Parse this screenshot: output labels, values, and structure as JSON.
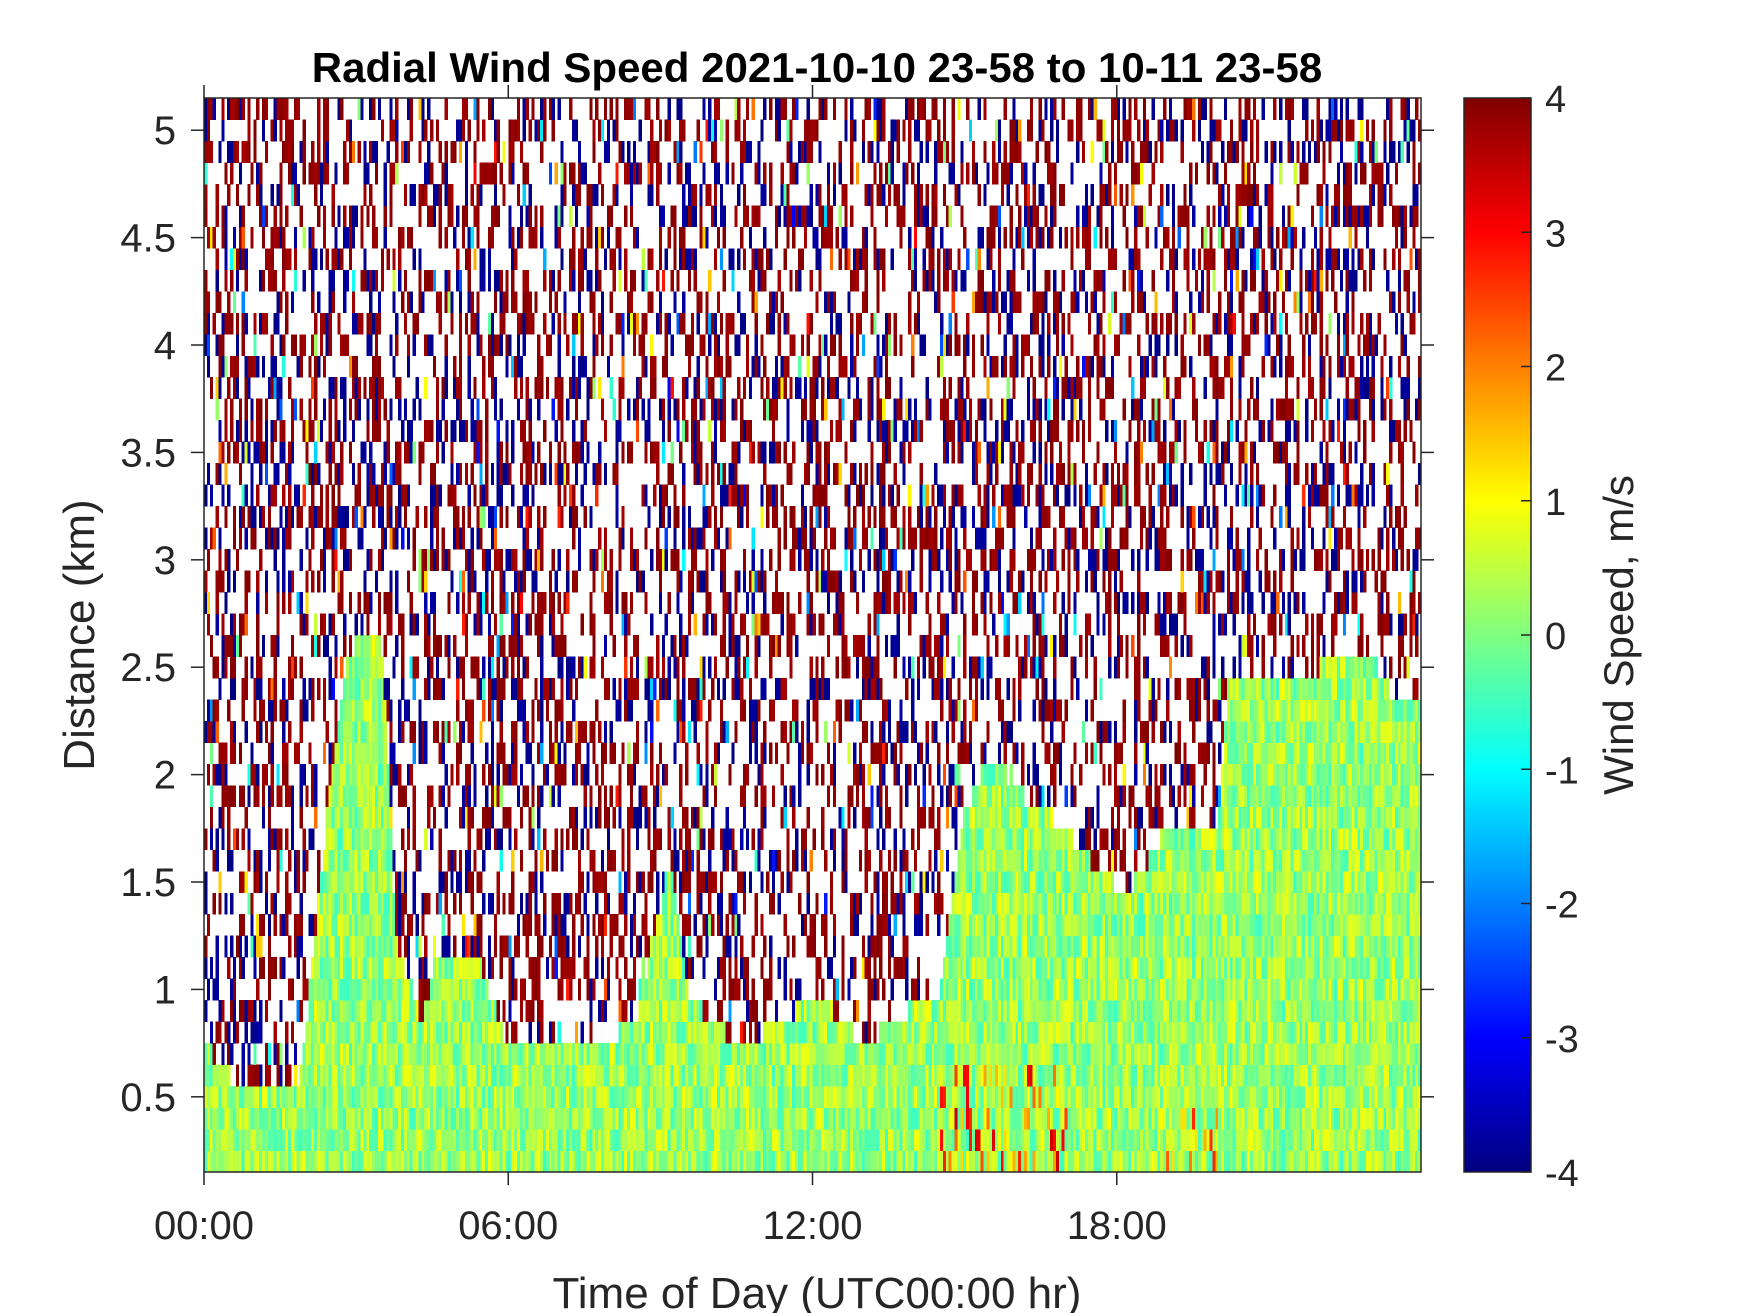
{
  "chart_data": {
    "type": "heatmap",
    "title": "Radial Wind Speed 2021-10-10 23-58 to 10-11 23-58",
    "xlabel": "Time of Day (UTC00:00 hr)",
    "ylabel": "Distance (km)",
    "colorbar_label": "Wind Speed, m/s",
    "x_unit": "hours",
    "xlim": [
      0,
      24
    ],
    "ylim": [
      0.15,
      5.15
    ],
    "x_ticks": [
      0,
      6,
      12,
      18
    ],
    "x_tick_labels": [
      "00:00",
      "06:00",
      "12:00",
      "18:00"
    ],
    "y_ticks": [
      0.5,
      1,
      1.5,
      2,
      2.5,
      3,
      3.5,
      4,
      4.5,
      5
    ],
    "y_tick_labels": [
      "0.5",
      "1",
      "1.5",
      "2",
      "2.5",
      "3",
      "3.5",
      "4",
      "4.5",
      "5"
    ],
    "clim": [
      -4,
      4
    ],
    "colorbar_ticks": [
      -4,
      -3,
      -2,
      -1,
      0,
      1,
      2,
      3,
      4
    ],
    "colorbar_tick_labels": [
      "-4",
      "-3",
      "-2",
      "-1",
      "0",
      "1",
      "2",
      "3",
      "4"
    ],
    "colormap": "jet",
    "range_gate_km": 0.1,
    "grid": false,
    "signal_top_km": [
      [
        0.0,
        0.75
      ],
      [
        0.5,
        0.6
      ],
      [
        1.9,
        0.6
      ],
      [
        2.2,
        1.3
      ],
      [
        2.5,
        2.0
      ],
      [
        2.8,
        2.5
      ],
      [
        3.1,
        2.65
      ],
      [
        3.5,
        2.65
      ],
      [
        3.8,
        1.2
      ],
      [
        4.3,
        0.85
      ],
      [
        4.6,
        1.15
      ],
      [
        5.4,
        1.15
      ],
      [
        5.9,
        0.8
      ],
      [
        7.5,
        0.7
      ],
      [
        8.5,
        0.85
      ],
      [
        9.2,
        1.6
      ],
      [
        9.6,
        0.95
      ],
      [
        10.5,
        0.75
      ],
      [
        11.5,
        0.85
      ],
      [
        12.0,
        1.0
      ],
      [
        13.0,
        0.75
      ],
      [
        14.5,
        1.0
      ],
      [
        15.0,
        1.8
      ],
      [
        15.5,
        2.1
      ],
      [
        16.2,
        1.9
      ],
      [
        17.0,
        1.75
      ],
      [
        17.5,
        1.6
      ],
      [
        18.2,
        1.45
      ],
      [
        19.0,
        1.75
      ],
      [
        20.0,
        1.8
      ],
      [
        20.2,
        2.45
      ],
      [
        21.0,
        2.45
      ],
      [
        23.0,
        2.55
      ],
      [
        23.5,
        2.35
      ],
      [
        24.0,
        2.35
      ]
    ],
    "signal_mean_m_s": 0.2,
    "noise_values_m_s": [
      -4,
      4
    ],
    "hotspots": [
      {
        "t_start": 14.5,
        "t_end": 17.0,
        "z_top_km": 0.7,
        "values_m_s": [
          0.5,
          3.5
        ]
      },
      {
        "t_start": 19.0,
        "t_end": 20.0,
        "z_top_km": 0.5,
        "values_m_s": [
          0.5,
          3.0
        ]
      }
    ]
  }
}
